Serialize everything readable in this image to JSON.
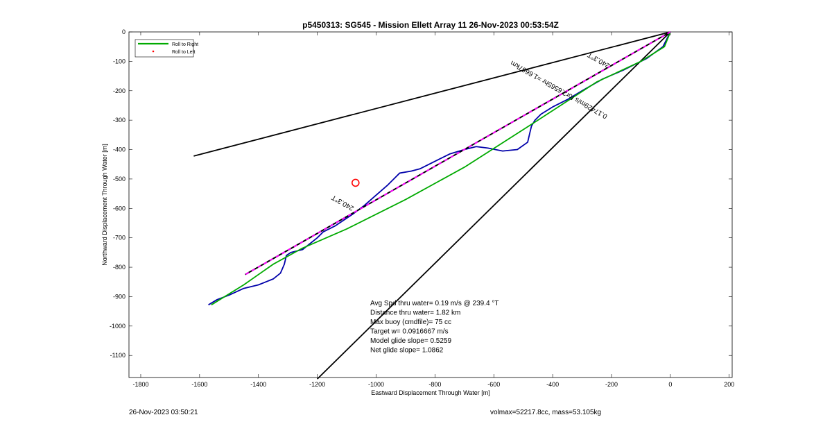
{
  "chart_data": {
    "type": "line",
    "title": "p5450313: SG545 - Mission Ellett Array 11 26-Nov-2023 00:53:54Z",
    "xlabel": "Eastward Displacement Through Water [m]",
    "ylabel": "Northward Displacement Through Water [m]",
    "xlim": [
      -1840,
      210
    ],
    "ylim": [
      -1175,
      0
    ],
    "xticks": [
      -1800,
      -1600,
      -1400,
      -1200,
      -1000,
      -800,
      -600,
      -400,
      -200,
      0,
      200
    ],
    "yticks": [
      0,
      -100,
      -200,
      -300,
      -400,
      -500,
      -600,
      -700,
      -800,
      -900,
      -1000,
      -1100
    ],
    "grid": false,
    "legend_position": "top-left",
    "legend": [
      {
        "label": "Roll to Right",
        "color": "#00aa00",
        "style": "line"
      },
      {
        "label": "Roll to Left",
        "color": "#ff0000",
        "style": "marker"
      }
    ],
    "series": [
      {
        "color": "#0000aa",
        "x": [
          0,
          -5,
          -25,
          -80,
          -160,
          -230,
          -300,
          -350,
          -400,
          -440,
          -460,
          -472,
          -478,
          -485,
          -520,
          -570,
          -620,
          -660,
          -700,
          -750,
          -800,
          -850,
          -880,
          -920,
          -960,
          -1000,
          -1040,
          -1080,
          -1110,
          -1140,
          -1180,
          -1200,
          -1250,
          -1290,
          -1305,
          -1312,
          -1325,
          -1350,
          -1400,
          -1450,
          -1500,
          -1540,
          -1570
        ],
        "y": [
          0,
          -10,
          -50,
          -90,
          -130,
          -160,
          -200,
          -230,
          -255,
          -280,
          -300,
          -320,
          -345,
          -375,
          -400,
          -405,
          -395,
          -390,
          -400,
          -415,
          -440,
          -465,
          -473,
          -480,
          -520,
          -555,
          -590,
          -620,
          -640,
          -660,
          -680,
          -700,
          -740,
          -750,
          -760,
          -790,
          -820,
          -840,
          -860,
          -872,
          -895,
          -910,
          -928
        ]
      },
      {
        "color": "#00aa00",
        "x": [
          0,
          -20,
          -100,
          -250,
          -450,
          -700,
          -900,
          -1100,
          -1250,
          -1350,
          -1450,
          -1560
        ],
        "y": [
          0,
          -50,
          -100,
          -170,
          -300,
          -460,
          -570,
          -670,
          -735,
          -790,
          -860,
          -928
        ]
      },
      {
        "color": "#000000",
        "dash": true,
        "x": [
          0,
          -1445
        ],
        "y": [
          0,
          -825
        ]
      }
    ],
    "reference_lines": [
      {
        "color": "#000000",
        "x": [
          0,
          -1620
        ],
        "y": [
          0,
          -422
        ]
      },
      {
        "color": "#000000",
        "x": [
          0,
          -1200
        ],
        "y": [
          0,
          -1180
        ]
      }
    ],
    "markers": [
      {
        "label": "target",
        "color": "#ff0000",
        "x": -1070,
        "y": -513
      }
    ],
    "annotations": [
      {
        "text": "240.3°T",
        "x": -240,
        "y": -90,
        "rotate": 209.7
      },
      {
        "text": "0.17429m/s for2.6565hr =1.6667km",
        "x": -375,
        "y": -190,
        "rotate": 209.7
      },
      {
        "text": "240.3°T",
        "x": -1110,
        "y": -575,
        "rotate": 209.7
      }
    ],
    "stats_box": [
      "Avg Spd thru water=  0.19 m/s @ 239.4 °T",
      "Distance thru water=  1.82 km",
      "Max buoy (cmdfile)= 75 cc",
      "Target w= 0.0916667 m/s",
      "Model glide slope= 0.5259",
      "Net glide slope= 1.0862"
    ]
  },
  "footer": {
    "timestamp": "26-Nov-2023 03:50:21",
    "volmax": "volmax=52217.8cc, mass=53.105kg"
  }
}
